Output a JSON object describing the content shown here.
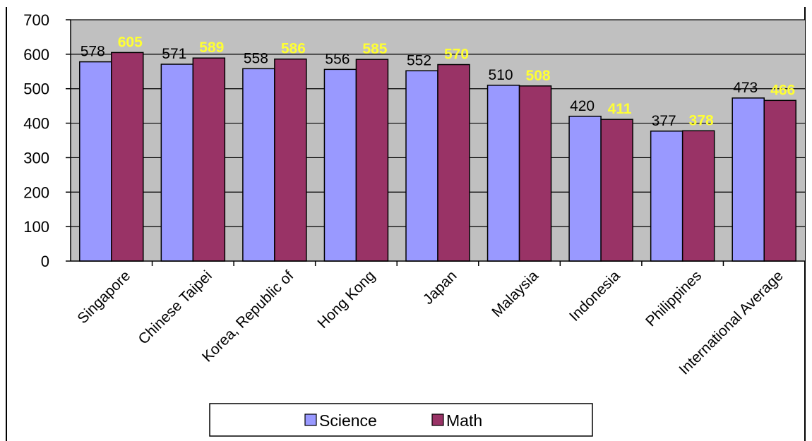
{
  "chart_data": {
    "type": "bar",
    "title": "",
    "xlabel": "",
    "ylabel": "",
    "ylim": [
      0,
      700
    ],
    "yticks": [
      0,
      100,
      200,
      300,
      400,
      500,
      600,
      700
    ],
    "grid": true,
    "legend_position": "bottom",
    "categories": [
      "Singapore",
      "Chinese Taipei",
      "Korea, Republic of",
      "Hong Kong",
      "Japan",
      "Malaysia",
      "Indonesia",
      "Philippines",
      "International Average"
    ],
    "series": [
      {
        "name": "Science",
        "values": [
          578,
          571,
          558,
          556,
          552,
          510,
          420,
          377,
          473
        ],
        "color": "#9999ff"
      },
      {
        "name": "Math",
        "values": [
          605,
          589,
          586,
          585,
          570,
          508,
          411,
          378,
          466
        ],
        "color": "#993366"
      }
    ]
  }
}
